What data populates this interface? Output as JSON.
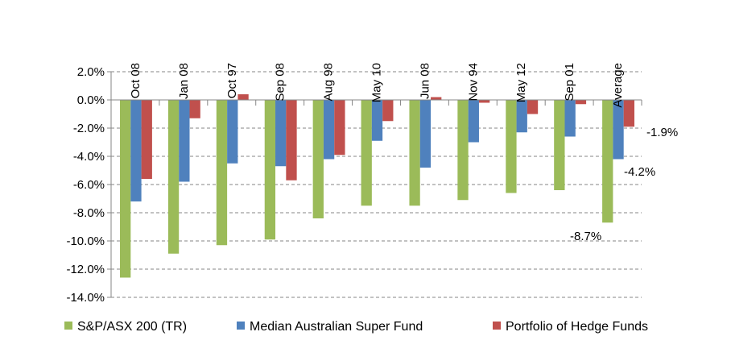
{
  "chart_data": {
    "type": "bar",
    "title": "",
    "xlabel": "",
    "ylabel": "",
    "ylim": [
      -14,
      2
    ],
    "yticks": [
      "2.0%",
      "0.0%",
      "-2.0%",
      "-4.0%",
      "-6.0%",
      "-8.0%",
      "-10.0%",
      "-12.0%",
      "-14.0%"
    ],
    "ytick_values": [
      2,
      0,
      -2,
      -4,
      -6,
      -8,
      -10,
      -12,
      -14
    ],
    "grid": "horizontal dashed",
    "legend_position": "bottom",
    "categories": [
      "Oct 08",
      "Jan 08",
      "Oct 97",
      "Sep 08",
      "Aug 98",
      "May 10",
      "Jun 08",
      "Nov 94",
      "May 12",
      "Sep 01",
      "Average"
    ],
    "series": [
      {
        "name": "S&P/ASX 200 (TR)",
        "color": "#9BBB59",
        "values": [
          -12.6,
          -10.9,
          -10.3,
          -9.9,
          -8.4,
          -7.5,
          -7.5,
          -7.1,
          -6.6,
          -6.4,
          -8.7
        ]
      },
      {
        "name": "Median Australian Super Fund",
        "color": "#4F81BD",
        "values": [
          -7.2,
          -5.8,
          -4.5,
          -4.7,
          -4.2,
          -2.9,
          -4.8,
          -3.0,
          -2.3,
          -2.6,
          -4.2
        ]
      },
      {
        "name": "Portfolio of Hedge Funds",
        "color": "#C0504D",
        "values": [
          -5.6,
          -1.3,
          0.4,
          -5.7,
          -3.9,
          -1.5,
          0.2,
          -0.2,
          -1.0,
          -0.3,
          -1.9
        ]
      }
    ],
    "data_labels": [
      {
        "category": "Average",
        "series": "S&P/ASX 200 (TR)",
        "text": "-8.7%"
      },
      {
        "category": "Average",
        "series": "Median Australian Super Fund",
        "text": "-4.2%"
      },
      {
        "category": "Average",
        "series": "Portfolio of Hedge Funds",
        "text": "-1.9%"
      }
    ]
  }
}
